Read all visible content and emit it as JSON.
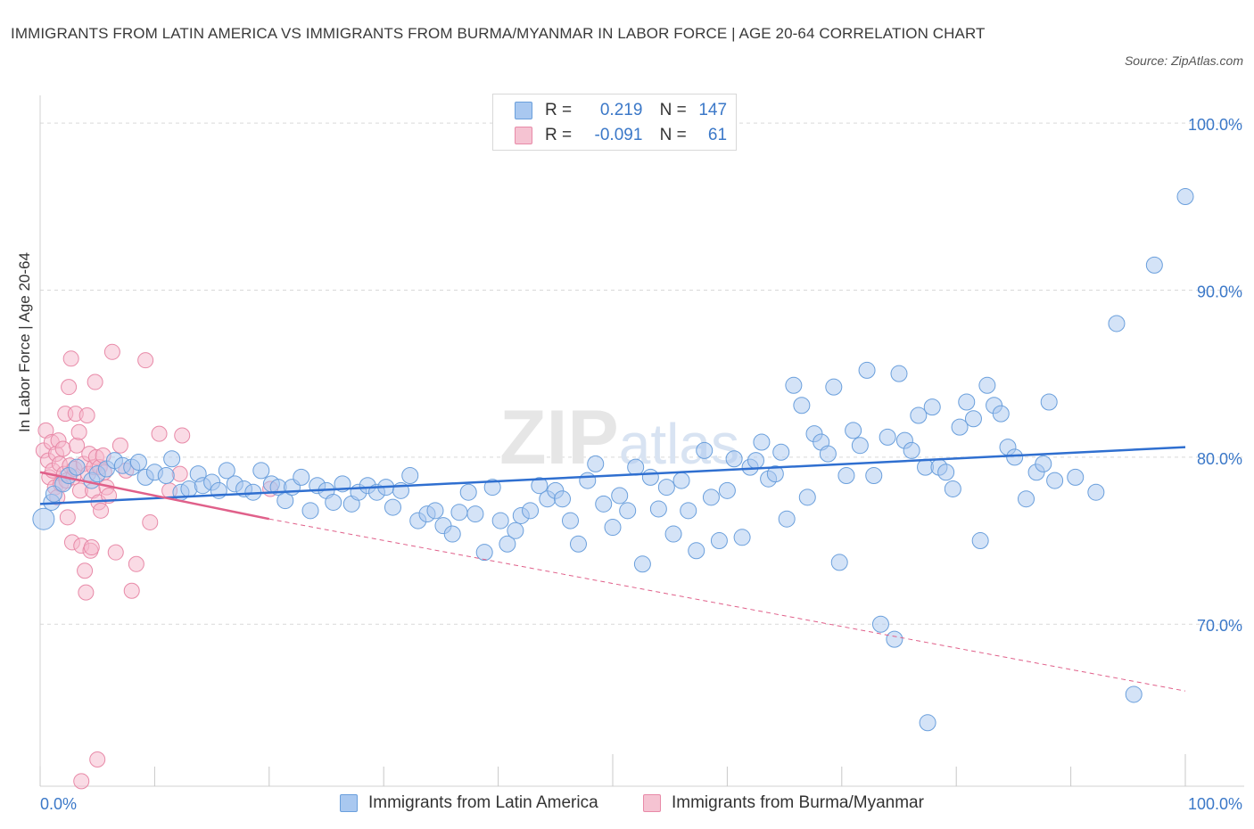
{
  "header": {
    "title": "IMMIGRANTS FROM LATIN AMERICA VS IMMIGRANTS FROM BURMA/MYANMAR IN LABOR FORCE | AGE 20-64 CORRELATION CHART",
    "source": "Source: ZipAtlas.com"
  },
  "legend_top": {
    "rows": [
      {
        "r_label": "R =",
        "r_value": "0.219",
        "n_label": "N =",
        "n_value": "147"
      },
      {
        "r_label": "R =",
        "r_value": "-0.091",
        "n_label": "N =",
        "n_value": "61"
      }
    ]
  },
  "colors": {
    "blue_fill": "#a9c8f0",
    "blue_stroke": "#6a9fdc",
    "blue_line": "#2f6fd0",
    "pink_fill": "#f5b8cb",
    "pink_stroke": "#e88aa8",
    "pink_line": "#e0608a",
    "grid": "#d9d9d9",
    "axis_text": "#3b78c8"
  },
  "chart_data": {
    "type": "scatter",
    "title": "IMMIGRANTS FROM LATIN AMERICA VS IMMIGRANTS FROM BURMA/MYANMAR IN LABOR FORCE | AGE 20-64 CORRELATION CHART",
    "xlabel": "",
    "ylabel": "In Labor Force | Age 20-64",
    "x_tick_labels": [
      "0.0%",
      "100.0%"
    ],
    "y_tick_labels": [
      "100.0%",
      "90.0%",
      "80.0%",
      "70.0%"
    ],
    "xlim": [
      0,
      100
    ],
    "ylim": [
      60.3,
      102.3
    ],
    "y_ticks": [
      100,
      90,
      80,
      70
    ],
    "grid": true,
    "legend_position": "bottom",
    "watermark": "ZIPatlas",
    "series": [
      {
        "name": "Immigrants from Latin America",
        "color": "blue",
        "trendline": {
          "x": [
            0,
            100
          ],
          "y": [
            77.2,
            80.6
          ],
          "style": "solid"
        },
        "points": [
          [
            0.3,
            76.3
          ],
          [
            1.0,
            77.3
          ],
          [
            1.2,
            77.8
          ],
          [
            2.0,
            78.4
          ],
          [
            2.5,
            78.9
          ],
          [
            3.2,
            79.4
          ],
          [
            4.5,
            78.6
          ],
          [
            5.0,
            79.0
          ],
          [
            5.8,
            79.3
          ],
          [
            6.5,
            79.8
          ],
          [
            7.2,
            79.5
          ],
          [
            8.0,
            79.4
          ],
          [
            8.6,
            79.7
          ],
          [
            9.2,
            78.8
          ],
          [
            10.0,
            79.1
          ],
          [
            11.0,
            78.9
          ],
          [
            11.5,
            79.9
          ],
          [
            12.3,
            77.9
          ],
          [
            13.0,
            78.1
          ],
          [
            13.8,
            79.0
          ],
          [
            14.2,
            78.3
          ],
          [
            15.0,
            78.5
          ],
          [
            15.6,
            78.0
          ],
          [
            16.3,
            79.2
          ],
          [
            17.0,
            78.4
          ],
          [
            17.8,
            78.1
          ],
          [
            18.6,
            77.9
          ],
          [
            19.3,
            79.2
          ],
          [
            20.2,
            78.4
          ],
          [
            20.8,
            78.2
          ],
          [
            21.4,
            77.4
          ],
          [
            22.0,
            78.2
          ],
          [
            22.8,
            78.8
          ],
          [
            23.6,
            76.8
          ],
          [
            24.2,
            78.3
          ],
          [
            25.0,
            78.0
          ],
          [
            25.6,
            77.3
          ],
          [
            26.4,
            78.4
          ],
          [
            27.2,
            77.2
          ],
          [
            27.8,
            77.9
          ],
          [
            28.6,
            78.3
          ],
          [
            29.4,
            77.9
          ],
          [
            30.2,
            78.2
          ],
          [
            30.8,
            77.0
          ],
          [
            31.5,
            78.0
          ],
          [
            32.3,
            78.9
          ],
          [
            33.0,
            76.2
          ],
          [
            33.8,
            76.6
          ],
          [
            34.5,
            76.8
          ],
          [
            35.2,
            75.9
          ],
          [
            36.0,
            75.4
          ],
          [
            36.6,
            76.7
          ],
          [
            37.4,
            77.9
          ],
          [
            38.0,
            76.6
          ],
          [
            38.8,
            74.3
          ],
          [
            39.5,
            78.2
          ],
          [
            40.2,
            76.2
          ],
          [
            40.8,
            74.8
          ],
          [
            41.5,
            75.6
          ],
          [
            42.0,
            76.5
          ],
          [
            42.8,
            76.8
          ],
          [
            43.6,
            78.3
          ],
          [
            44.3,
            77.5
          ],
          [
            45.0,
            78.0
          ],
          [
            45.6,
            77.5
          ],
          [
            46.3,
            76.2
          ],
          [
            47.0,
            74.8
          ],
          [
            47.8,
            78.6
          ],
          [
            48.5,
            79.6
          ],
          [
            49.2,
            77.2
          ],
          [
            50.0,
            75.8
          ],
          [
            50.6,
            77.7
          ],
          [
            51.3,
            76.8
          ],
          [
            52.0,
            79.4
          ],
          [
            52.6,
            73.6
          ],
          [
            53.3,
            78.8
          ],
          [
            54.0,
            76.9
          ],
          [
            54.7,
            78.2
          ],
          [
            55.3,
            75.4
          ],
          [
            56.0,
            78.6
          ],
          [
            56.6,
            76.8
          ],
          [
            57.3,
            74.4
          ],
          [
            58.0,
            80.4
          ],
          [
            58.6,
            77.6
          ],
          [
            59.3,
            75.0
          ],
          [
            60.0,
            78.0
          ],
          [
            60.6,
            79.9
          ],
          [
            61.3,
            75.2
          ],
          [
            62.0,
            79.4
          ],
          [
            62.5,
            79.8
          ],
          [
            63.0,
            80.9
          ],
          [
            63.6,
            78.7
          ],
          [
            64.2,
            79.0
          ],
          [
            64.7,
            80.3
          ],
          [
            65.2,
            76.3
          ],
          [
            65.8,
            84.3
          ],
          [
            66.5,
            83.1
          ],
          [
            67.0,
            77.6
          ],
          [
            67.6,
            81.4
          ],
          [
            68.2,
            80.9
          ],
          [
            68.8,
            80.2
          ],
          [
            69.3,
            84.2
          ],
          [
            69.8,
            73.7
          ],
          [
            70.4,
            78.9
          ],
          [
            71.0,
            81.6
          ],
          [
            71.6,
            80.7
          ],
          [
            72.2,
            85.2
          ],
          [
            72.8,
            78.9
          ],
          [
            73.4,
            70.0
          ],
          [
            74.0,
            81.2
          ],
          [
            74.6,
            69.1
          ],
          [
            75.0,
            85.0
          ],
          [
            75.5,
            81.0
          ],
          [
            76.1,
            80.4
          ],
          [
            76.7,
            82.5
          ],
          [
            77.3,
            79.4
          ],
          [
            77.9,
            83.0
          ],
          [
            78.5,
            79.4
          ],
          [
            79.1,
            79.1
          ],
          [
            79.7,
            78.1
          ],
          [
            80.3,
            81.8
          ],
          [
            80.9,
            83.3
          ],
          [
            81.5,
            82.3
          ],
          [
            82.1,
            75.0
          ],
          [
            82.7,
            84.3
          ],
          [
            83.3,
            83.1
          ],
          [
            83.9,
            82.6
          ],
          [
            84.5,
            80.6
          ],
          [
            85.1,
            80.0
          ],
          [
            86.1,
            77.5
          ],
          [
            87.0,
            79.1
          ],
          [
            87.6,
            79.6
          ],
          [
            88.1,
            83.3
          ],
          [
            88.6,
            78.6
          ],
          [
            90.4,
            78.8
          ],
          [
            92.2,
            77.9
          ],
          [
            94.0,
            88.0
          ],
          [
            95.5,
            65.8
          ],
          [
            97.3,
            91.5
          ],
          [
            100.0,
            95.6
          ],
          [
            77.5,
            64.1
          ]
        ]
      },
      {
        "name": "Immigrants from Burma/Myanmar",
        "color": "pink",
        "trendline": {
          "x": [
            0,
            20
          ],
          "y": [
            79.1,
            76.3
          ],
          "style": "solid",
          "dashed_extension": {
            "x": [
              20,
              100
            ],
            "y": [
              76.3,
              66.0
            ]
          }
        },
        "points": [
          [
            0.3,
            80.4
          ],
          [
            0.5,
            81.6
          ],
          [
            0.7,
            79.8
          ],
          [
            0.8,
            78.8
          ],
          [
            1.0,
            80.9
          ],
          [
            1.1,
            79.2
          ],
          [
            1.3,
            78.2
          ],
          [
            1.4,
            80.2
          ],
          [
            1.5,
            77.6
          ],
          [
            1.6,
            81.0
          ],
          [
            1.7,
            79.6
          ],
          [
            1.8,
            78.4
          ],
          [
            2.0,
            80.5
          ],
          [
            2.1,
            79.0
          ],
          [
            2.2,
            82.6
          ],
          [
            2.3,
            78.6
          ],
          [
            2.4,
            76.4
          ],
          [
            2.5,
            84.2
          ],
          [
            2.6,
            79.5
          ],
          [
            2.7,
            85.9
          ],
          [
            2.8,
            74.9
          ],
          [
            2.9,
            78.8
          ],
          [
            3.0,
            79.3
          ],
          [
            3.1,
            82.6
          ],
          [
            3.2,
            80.7
          ],
          [
            3.4,
            81.5
          ],
          [
            3.5,
            78.0
          ],
          [
            3.6,
            74.7
          ],
          [
            3.8,
            79.6
          ],
          [
            3.9,
            73.2
          ],
          [
            4.0,
            71.9
          ],
          [
            4.1,
            82.5
          ],
          [
            4.2,
            79.0
          ],
          [
            4.3,
            80.2
          ],
          [
            4.4,
            74.4
          ],
          [
            4.5,
            74.6
          ],
          [
            4.6,
            78.0
          ],
          [
            4.7,
            79.4
          ],
          [
            4.8,
            84.5
          ],
          [
            4.9,
            80.0
          ],
          [
            5.0,
            61.9
          ],
          [
            5.1,
            77.3
          ],
          [
            5.2,
            79.4
          ],
          [
            5.3,
            76.8
          ],
          [
            5.5,
            80.1
          ],
          [
            5.6,
            79.1
          ],
          [
            5.8,
            78.2
          ],
          [
            6.0,
            77.7
          ],
          [
            6.3,
            86.3
          ],
          [
            6.6,
            74.3
          ],
          [
            7.0,
            80.7
          ],
          [
            7.5,
            79.2
          ],
          [
            8.0,
            72.0
          ],
          [
            8.4,
            73.6
          ],
          [
            9.2,
            85.8
          ],
          [
            9.6,
            76.1
          ],
          [
            10.4,
            81.4
          ],
          [
            11.3,
            78.0
          ],
          [
            12.2,
            79.0
          ],
          [
            12.4,
            81.3
          ],
          [
            20.1,
            78.1
          ],
          [
            3.6,
            60.6
          ]
        ]
      }
    ]
  }
}
